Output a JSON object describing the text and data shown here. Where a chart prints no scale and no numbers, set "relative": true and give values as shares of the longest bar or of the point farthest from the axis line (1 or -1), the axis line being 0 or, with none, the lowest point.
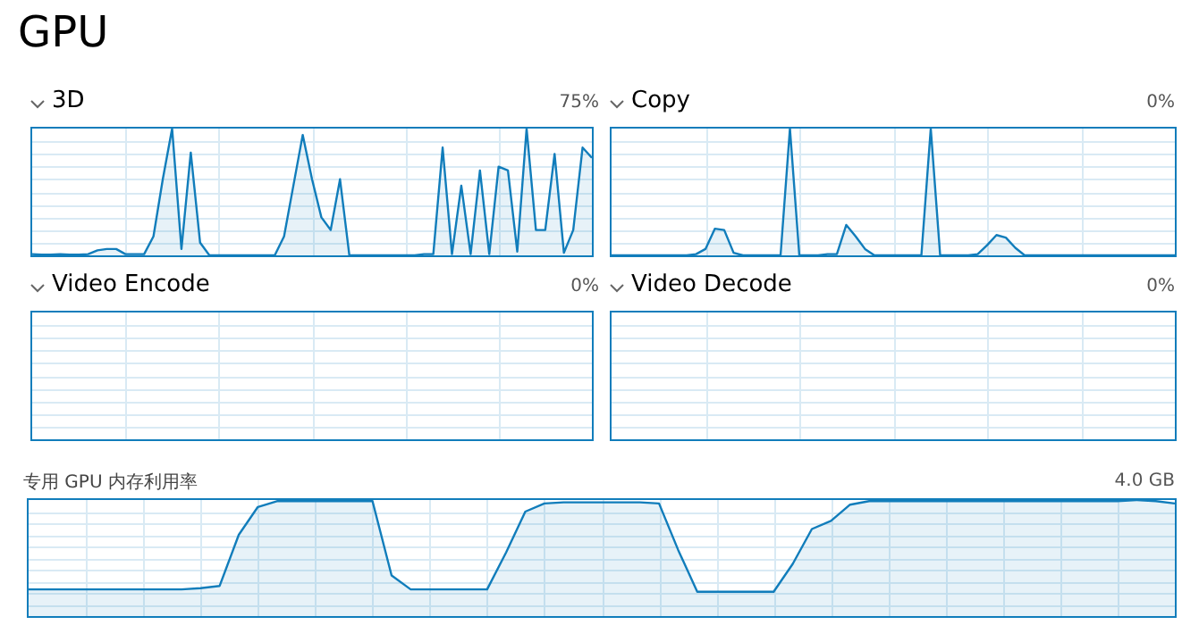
{
  "chart_data": [
    {
      "type": "area",
      "title": "3D",
      "annotations": [
        "GPU",
        "75%"
      ],
      "categories": [
        null,
        null,
        null,
        null,
        null,
        null,
        null,
        null,
        null,
        null,
        null,
        null,
        null,
        null,
        null,
        null,
        null,
        null,
        null,
        null,
        null,
        null,
        null,
        null,
        null,
        null,
        null,
        null,
        null,
        null,
        null,
        null,
        null,
        null,
        null,
        null,
        null,
        null,
        null,
        null,
        null,
        null,
        null,
        null,
        null,
        null,
        null,
        null,
        null,
        null,
        null,
        null,
        null,
        null,
        null,
        null,
        null,
        null,
        null,
        null,
        null
      ],
      "values": [
        0.01,
        0.005,
        0.005,
        0.01,
        0.005,
        0.005,
        0.01,
        0.04,
        0.05,
        0.05,
        0.01,
        0.01,
        0.01,
        0.15,
        0.6,
        1.0,
        0.05,
        0.81,
        0.1,
        0,
        0,
        0,
        0,
        0,
        0,
        0,
        0,
        0.15,
        0.55,
        0.95,
        0.6,
        0.3,
        0.2,
        0.6,
        0,
        0,
        0,
        0,
        0,
        0,
        0,
        0,
        0.01,
        0.01,
        0.85,
        0.01,
        0.55,
        0.01,
        0.67,
        0.01,
        0.7,
        0.67,
        0.03,
        1.0,
        0.2,
        0.2,
        0.8,
        0.02,
        0.2,
        0.85,
        0.77
      ],
      "color": "#117dbb",
      "relative": true,
      "grid": true,
      "marker": "none"
    },
    {
      "type": "area",
      "title": "Copy",
      "annotations": [
        "0%"
      ],
      "categories": [
        null,
        null,
        null,
        null,
        null,
        null,
        null,
        null,
        null,
        null,
        null,
        null,
        null,
        null,
        null,
        null,
        null,
        null,
        null,
        null,
        null,
        null,
        null,
        null,
        null,
        null,
        null,
        null,
        null,
        null,
        null,
        null,
        null,
        null,
        null,
        null,
        null,
        null,
        null,
        null,
        null,
        null,
        null,
        null,
        null,
        null,
        null,
        null,
        null,
        null,
        null,
        null,
        null,
        null,
        null,
        null,
        null,
        null,
        null,
        null,
        null
      ],
      "values": [
        0,
        0,
        0,
        0,
        0,
        0,
        0,
        0,
        0,
        0.01,
        0.05,
        0.21,
        0.2,
        0.02,
        0,
        0,
        0,
        0,
        0,
        1.0,
        0,
        0,
        0,
        0.01,
        0.01,
        0.24,
        0.15,
        0.05,
        0,
        0,
        0,
        0,
        0,
        0,
        1.0,
        0,
        0,
        0,
        0,
        0.01,
        0.08,
        0.16,
        0.14,
        0.06,
        0,
        0,
        0,
        0,
        0,
        0,
        0,
        0,
        0,
        0,
        0,
        0,
        0,
        0,
        0,
        0,
        0
      ],
      "color": "#117dbb",
      "relative": true,
      "grid": true,
      "marker": "none"
    },
    {
      "type": "other",
      "title": "Video Encode",
      "annotations": [
        "0%"
      ]
    },
    {
      "type": "other",
      "title": "Video Decode",
      "annotations": [
        "0%"
      ]
    },
    {
      "type": "area",
      "title": "专用 GPU 内存利用率",
      "annotations": [
        "4.0 GB"
      ],
      "categories": [
        null,
        null,
        null,
        null,
        null,
        null,
        null,
        null,
        null,
        null,
        null,
        null,
        null,
        null,
        null,
        null,
        null,
        null,
        null,
        null,
        null,
        null,
        null,
        null,
        null,
        null,
        null,
        null,
        null,
        null,
        null,
        null,
        null,
        null,
        null,
        null,
        null,
        null,
        null,
        null,
        null,
        null,
        null,
        null,
        null,
        null,
        null,
        null,
        null,
        null,
        null,
        null,
        null,
        null,
        null,
        null,
        null,
        null,
        null,
        null,
        null
      ],
      "values": [
        0.23,
        0.23,
        0.23,
        0.23,
        0.23,
        0.23,
        0.23,
        0.23,
        0.23,
        0.24,
        0.26,
        0.7,
        0.94,
        0.99,
        0.99,
        0.99,
        0.99,
        0.99,
        0.99,
        0.35,
        0.23,
        0.23,
        0.23,
        0.23,
        0.23,
        0.55,
        0.9,
        0.97,
        0.98,
        0.98,
        0.98,
        0.98,
        0.98,
        0.97,
        0.57,
        0.21,
        0.21,
        0.21,
        0.21,
        0.21,
        0.45,
        0.75,
        0.82,
        0.96,
        0.99,
        0.99,
        0.99,
        0.99,
        0.99,
        0.99,
        0.99,
        0.99,
        0.99,
        0.99,
        0.99,
        0.99,
        0.99,
        0.99,
        1.0,
        0.99,
        0.97
      ],
      "color": "#117dbb",
      "relative": true,
      "grid": true,
      "marker": "none"
    }
  ]
}
